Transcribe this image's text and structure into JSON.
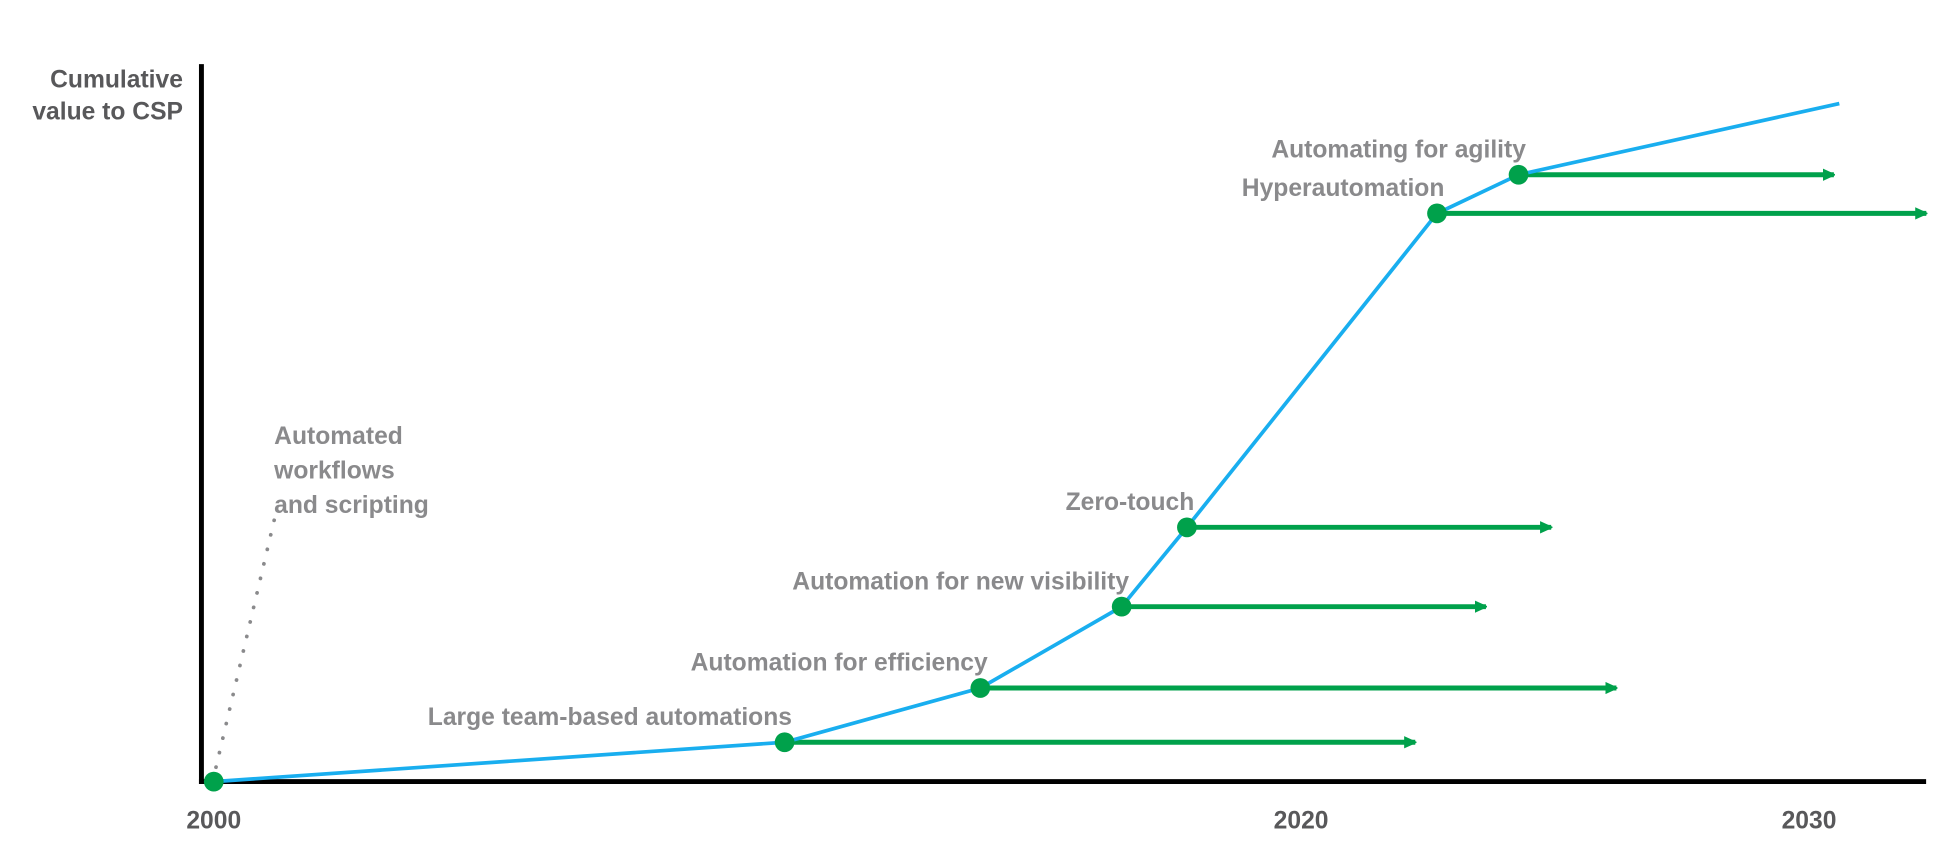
{
  "chart_data": {
    "type": "line",
    "title": "",
    "ylabel_lines": [
      "Cumulative",
      "value to CSP"
    ],
    "xlabel": "",
    "x_ticks": [
      2000,
      2020,
      2030
    ],
    "x_tick_labels": [
      "2000",
      "2020",
      "2030"
    ],
    "xlim": [
      2000,
      2032
    ],
    "ylim": [
      0,
      105
    ],
    "y_ticks_shown": false,
    "grid": false,
    "colors": {
      "curve": "#19aeef",
      "milestone": "#00a14b",
      "label": "#8a8a8c",
      "axis": "#000000"
    },
    "curve": {
      "x": [
        2000,
        2010.5,
        2014.1,
        2016.7,
        2017.9,
        2022.5,
        2024.0,
        2029.9
      ],
      "y": [
        0,
        5.8,
        13.8,
        25.8,
        37.5,
        83.8,
        89.5,
        100
      ]
    },
    "origin_annotation": {
      "lines": [
        "Automated",
        "workflows",
        "and scripting"
      ],
      "x": 2000,
      "y": 0
    },
    "milestones": [
      {
        "label": "Large team-based automations",
        "x": 2010.5,
        "y": 5.8,
        "arrow_to": 2022.1
      },
      {
        "label": "Automation for efficiency",
        "x": 2014.1,
        "y": 13.8,
        "arrow_to": 2025.8
      },
      {
        "label": "Automation for new visibility",
        "x": 2016.7,
        "y": 25.8,
        "arrow_to": 2023.4
      },
      {
        "label": "Zero-touch",
        "x": 2017.9,
        "y": 37.5,
        "arrow_to": 2024.6
      },
      {
        "label": "Hyperautomation",
        "x": 2022.5,
        "y": 83.8,
        "arrow_to": 2031.5
      },
      {
        "label": "Automating for agility",
        "x": 2024.0,
        "y": 89.5,
        "arrow_to": 2029.8
      }
    ]
  }
}
